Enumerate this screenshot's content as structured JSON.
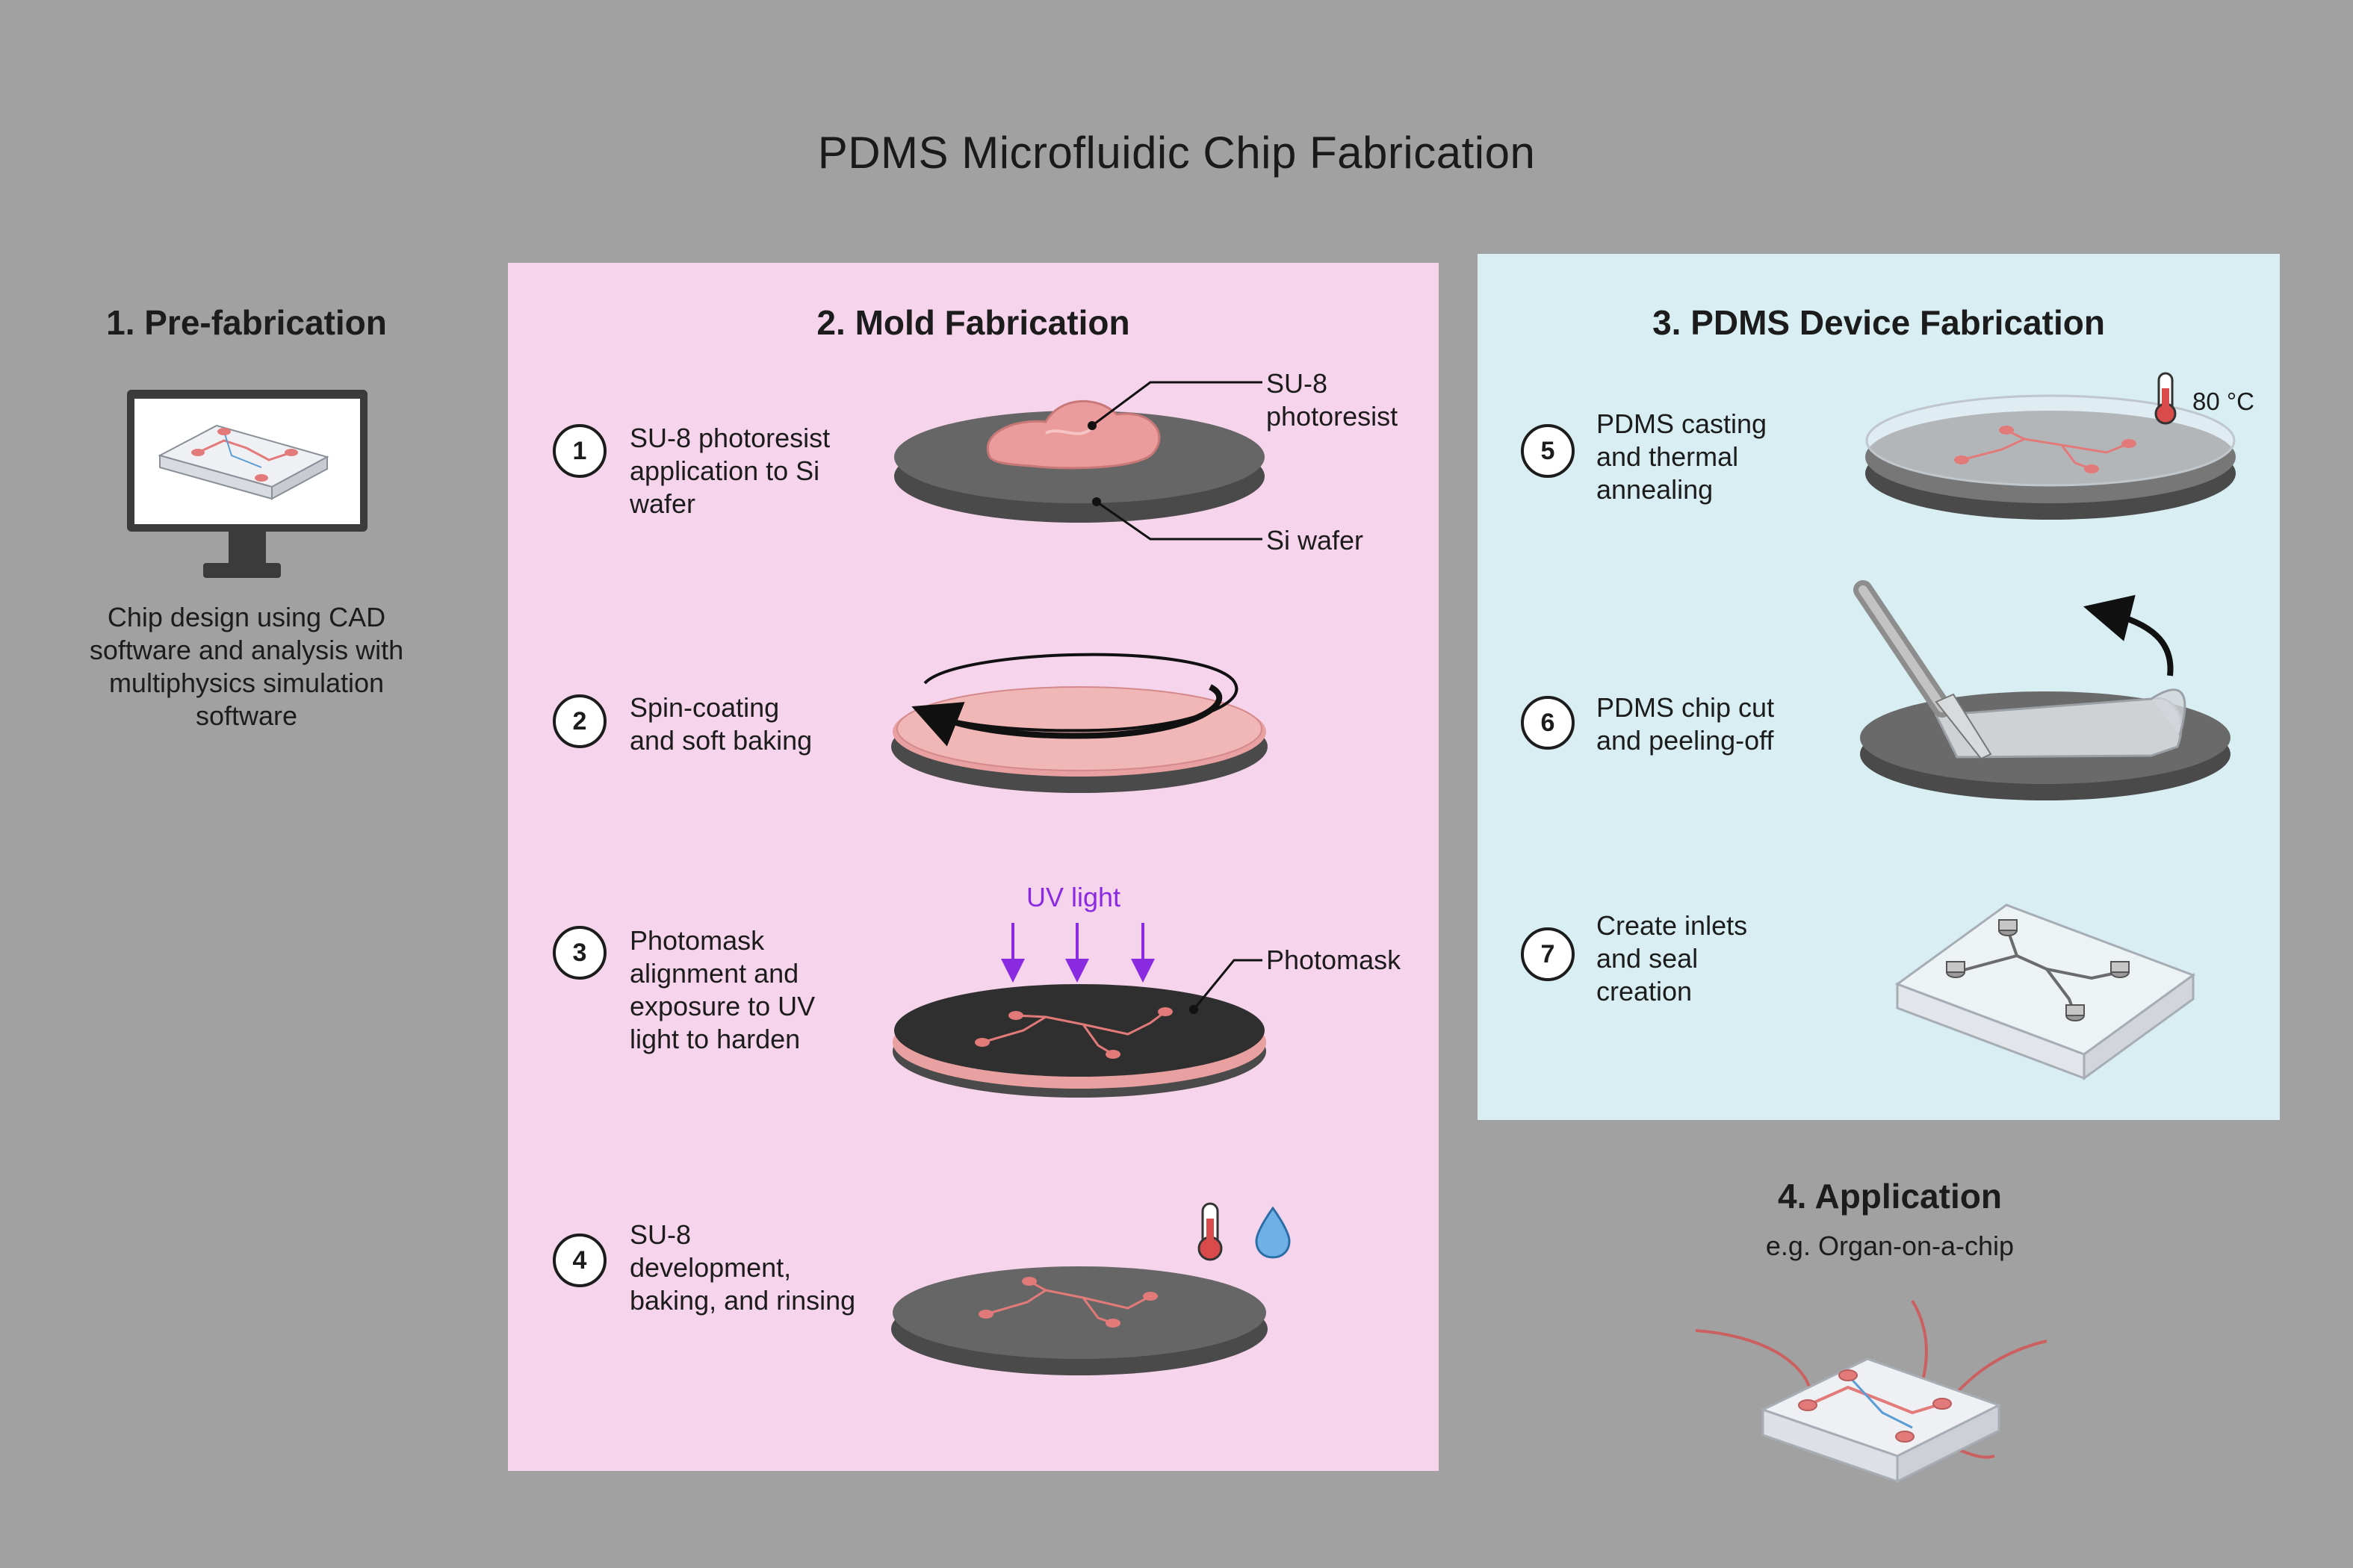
{
  "title": "PDMS Microfluidic Chip Fabrication",
  "sections": {
    "prefab": {
      "title": "1. Pre-fabrication",
      "caption": [
        "Chip design using CAD",
        "software and analysis with",
        "multiphysics simulation",
        "software"
      ]
    },
    "mold": {
      "title": "2. Mold Fabrication",
      "steps": [
        {
          "num": "1",
          "text": [
            "SU-8 photoresist",
            "application to Si",
            "wafer"
          ]
        },
        {
          "num": "2",
          "text": [
            "Spin-coating",
            "and soft baking"
          ]
        },
        {
          "num": "3",
          "text": [
            "Photomask",
            "alignment and",
            "exposure to UV",
            "light to harden"
          ]
        },
        {
          "num": "4",
          "text": [
            "SU-8",
            "development,",
            "baking, and rinsing"
          ]
        }
      ],
      "labels": {
        "su8": [
          "SU-8",
          "photoresist"
        ],
        "si_wafer": "Si wafer",
        "uv_light": "UV light",
        "photomask": "Photomask"
      }
    },
    "pdms": {
      "title": "3. PDMS Device Fabrication",
      "steps": [
        {
          "num": "5",
          "text": [
            "PDMS casting",
            "and thermal",
            "annealing"
          ]
        },
        {
          "num": "6",
          "text": [
            "PDMS chip cut",
            "and peeling-off"
          ]
        },
        {
          "num": "7",
          "text": [
            "Create inlets",
            "and seal",
            "creation"
          ]
        }
      ],
      "temperature": "80 °C"
    },
    "application": {
      "title": "4. Application",
      "subtitle": "e.g. Organ-on-a-chip"
    }
  },
  "colors": {
    "background": "#a1a1a1",
    "mold_panel": "#f6d4ec",
    "pdms_panel": "#d8eef3",
    "wafer": "#4f4f4f",
    "photoresist": "#eb9b9b",
    "uv": "#8a2be2",
    "channel": "#e37a7a"
  }
}
